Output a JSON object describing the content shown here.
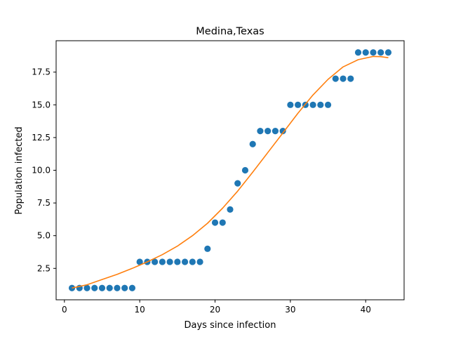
{
  "chart_data": {
    "type": "scatter",
    "title": "Medina,Texas",
    "xlabel": "Days since infection",
    "ylabel": "Population infected",
    "xlim": [
      -1.1,
      45.1
    ],
    "ylim": [
      0.1,
      19.9
    ],
    "xticks": [
      0,
      10,
      20,
      30,
      40
    ],
    "yticks": [
      2.5,
      5.0,
      7.5,
      10.0,
      12.5,
      15.0,
      17.5
    ],
    "xtick_labels": [
      "0",
      "10",
      "20",
      "30",
      "40"
    ],
    "ytick_labels": [
      "2.5",
      "5.0",
      "7.5",
      "10.0",
      "12.5",
      "15.0",
      "17.5"
    ],
    "grid": false,
    "legend": "none",
    "series": [
      {
        "kind": "scatter",
        "color": "#1f77b4",
        "x": [
          1,
          2,
          3,
          4,
          5,
          6,
          7,
          8,
          9,
          10,
          11,
          12,
          13,
          14,
          15,
          16,
          17,
          18,
          19,
          20,
          21,
          22,
          23,
          24,
          25,
          26,
          27,
          28,
          29,
          30,
          31,
          32,
          33,
          34,
          35,
          36,
          37,
          38,
          39,
          40,
          41,
          42,
          43
        ],
        "y": [
          1,
          1,
          1,
          1,
          1,
          1,
          1,
          1,
          1,
          3,
          3,
          3,
          3,
          3,
          3,
          3,
          3,
          3,
          4,
          6,
          6,
          7,
          9,
          10,
          12,
          13,
          13,
          13,
          13,
          15,
          15,
          15,
          15,
          15,
          15,
          17,
          17,
          17,
          19,
          19,
          19,
          19,
          19
        ]
      },
      {
        "kind": "line",
        "color": "#ff7f0e",
        "x": [
          1,
          3,
          5,
          7,
          9,
          11,
          13,
          15,
          17,
          19,
          21,
          23,
          25,
          27,
          29,
          31,
          33,
          35,
          37,
          39,
          41,
          42,
          43
        ],
        "y": [
          1.0,
          1.25,
          1.65,
          2.05,
          2.5,
          3.0,
          3.55,
          4.2,
          5.0,
          5.95,
          7.1,
          8.4,
          9.85,
          11.35,
          12.85,
          14.35,
          15.75,
          16.95,
          17.9,
          18.45,
          18.7,
          18.68,
          18.6
        ]
      }
    ]
  }
}
